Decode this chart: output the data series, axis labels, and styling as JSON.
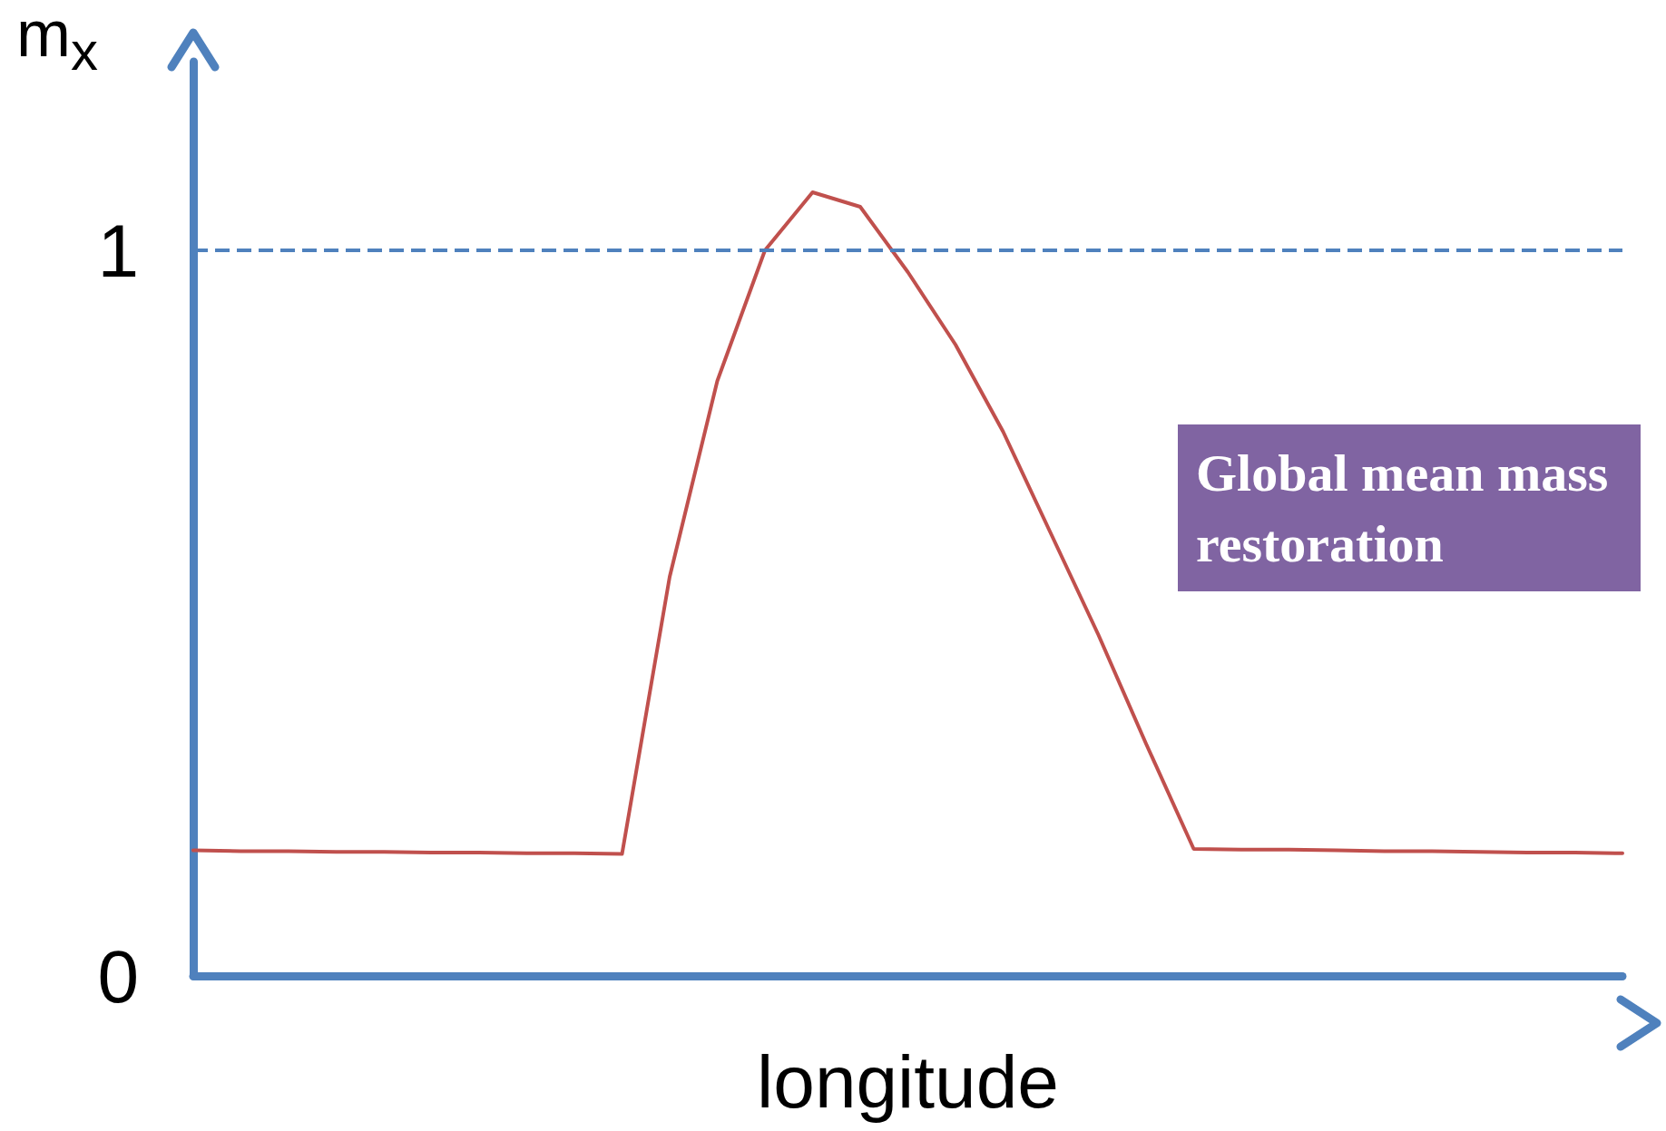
{
  "chart_data": {
    "type": "line",
    "xlabel": "longitude",
    "ylabel": "m$_{x}$",
    "categories": [
      null,
      null,
      null,
      null,
      null,
      null,
      null,
      null,
      null,
      null,
      null,
      null,
      null,
      null,
      null,
      null,
      null,
      null,
      null,
      null,
      null,
      null,
      null,
      null,
      null,
      null,
      null,
      null,
      null,
      null,
      null
    ],
    "series": [
      {
        "color": "#c0504d",
        "values": [
          0.173,
          0.172,
          0.172,
          0.171,
          0.171,
          0.17,
          0.17,
          0.169,
          0.169,
          0.168,
          0.55,
          0.82,
          1.0,
          1.08,
          1.06,
          0.97,
          0.87,
          0.75,
          0.61,
          0.47,
          0.32,
          0.175,
          0.174,
          0.174,
          0.173,
          0.172,
          0.172,
          0.171,
          0.17,
          0.17,
          0.169
        ]
      }
    ],
    "ylim": [
      0,
      1.26
    ],
    "yticks": [
      0,
      1
    ],
    "ref_lines": [
      {
        "axis": "y",
        "value": 1,
        "color": "#4f81bd",
        "line_style": "dashed"
      }
    ],
    "annotations": [
      "Global mean mass restoration"
    ],
    "grid": false,
    "marker": "none",
    "line_style": "solid",
    "tick_labels": "y"
  }
}
